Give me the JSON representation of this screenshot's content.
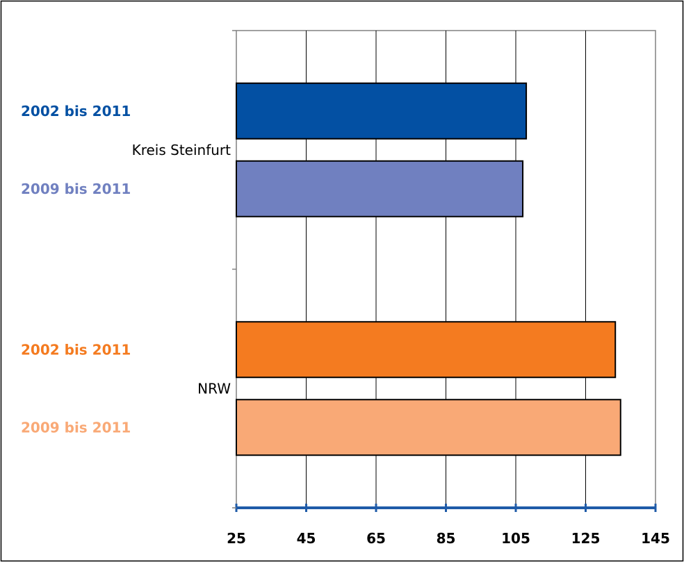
{
  "chart_data": {
    "type": "bar",
    "orientation": "horizontal",
    "title": "",
    "xlabel": "",
    "ylabel": "",
    "xlim": [
      25,
      145
    ],
    "x_ticks": [
      "25",
      "45",
      "65",
      "85",
      "105",
      "125",
      "145"
    ],
    "grid": true,
    "groups": [
      {
        "category": "Kreis Steinfurt",
        "bars": [
          {
            "label": "2002 bis 2011",
            "value": 108,
            "color": "#0350a3",
            "label_color": "#0350a3"
          },
          {
            "label": "2009 bis 2011",
            "value": 107,
            "color": "#7080c0",
            "label_color": "#7080c0"
          }
        ]
      },
      {
        "category": "NRW",
        "bars": [
          {
            "label": "2002 bis 2011",
            "value": 133.5,
            "color": "#f47b20",
            "label_color": "#f47b20"
          },
          {
            "label": "2009 bis 2011",
            "value": 135,
            "color": "#f9a976",
            "label_color": "#f9a976"
          }
        ]
      }
    ],
    "axis_color": "#1f5ba8"
  }
}
